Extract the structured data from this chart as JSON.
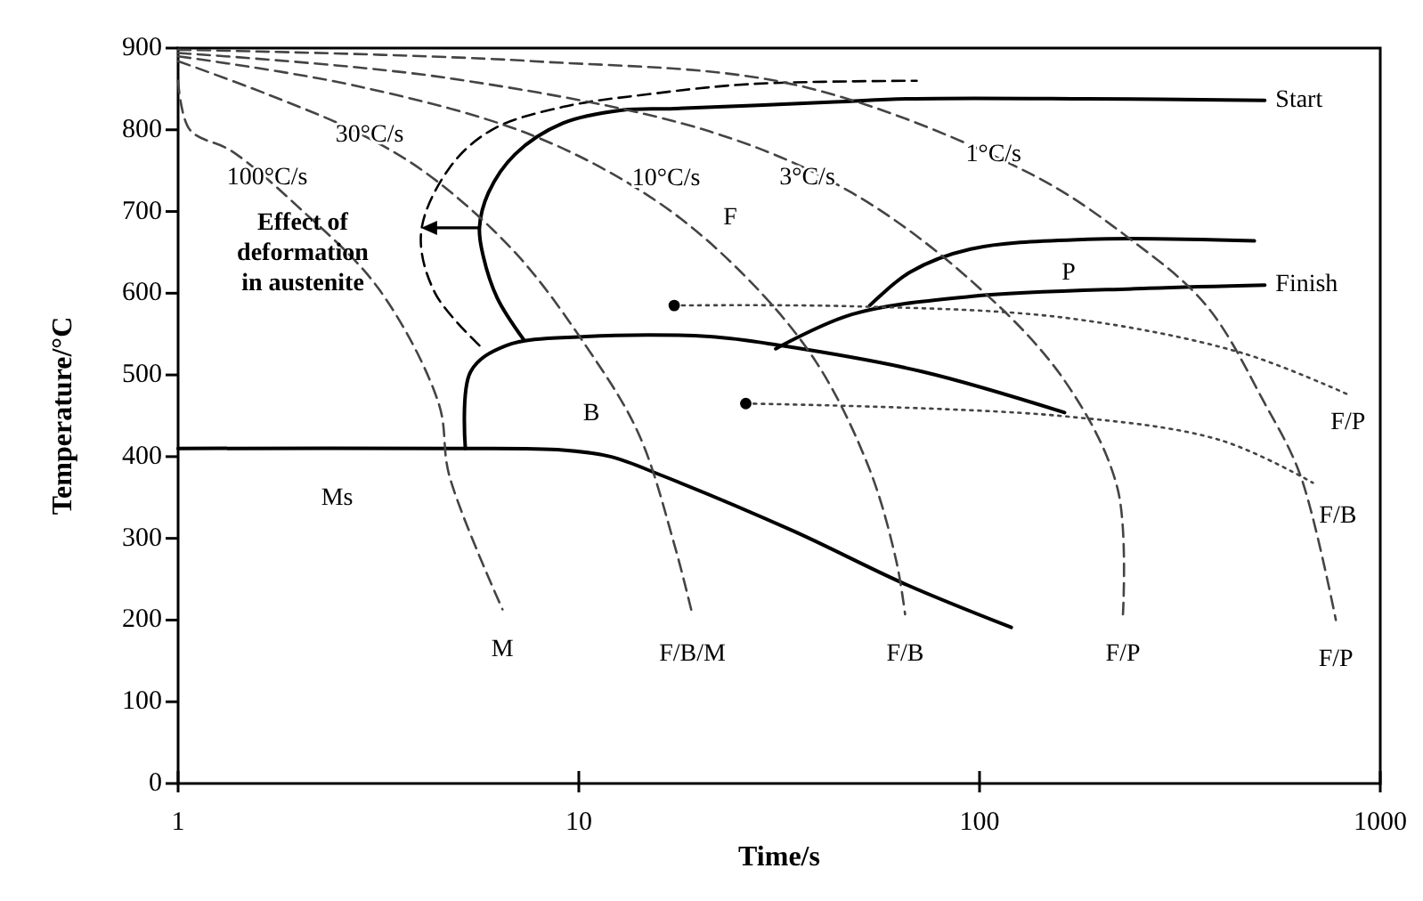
{
  "chart_data": {
    "type": "line",
    "xlabel": "Time/s",
    "ylabel": "Temperature/°C",
    "log": "x",
    "xlim": [
      1,
      1000
    ],
    "xticks": [
      1,
      10,
      100,
      1000
    ],
    "ylim": [
      0,
      900
    ],
    "yticks": [
      0,
      100,
      200,
      300,
      400,
      500,
      600,
      700,
      800,
      900
    ],
    "grid": false,
    "series": [
      {
        "name": "Start",
        "color": "#000000",
        "line_style": "solid",
        "x": [
          7.29,
          6.26,
          5.77,
          5.65,
          5.95,
          6.93,
          9.12,
          12.8,
          17.3,
          43.4,
          67.2,
          186,
          515
        ],
        "values": [
          543,
          594,
          646,
          680,
          723,
          770,
          808,
          824,
          826,
          834,
          838,
          838,
          836
        ]
      },
      {
        "color": "#000000",
        "line_style": "dashed",
        "x": [
          5.65,
          4.38,
          4.04,
          4.75,
          6.07,
          9.12,
          15.2,
          26.9,
          69.7
        ],
        "values": [
          536,
          600,
          674,
          753,
          800,
          828,
          844,
          856,
          860
        ]
      },
      {
        "color": "#000000",
        "line_style": "solid",
        "x": [
          5.21,
          5.37,
          6.59,
          10.4,
          21.2,
          31.9,
          72.1,
          163
        ],
        "values": [
          410,
          504,
          536,
          547,
          547,
          536,
          504,
          454
        ]
      },
      {
        "name": "Ms",
        "color": "#000000",
        "line_style": "solid",
        "x": [
          1,
          5,
          9.12,
          12,
          16.1,
          34.3,
          65.2,
          120
        ],
        "values": [
          410,
          410,
          408,
          400,
          377,
          309,
          244,
          191
        ]
      },
      {
        "color": "#000000",
        "line_style": "solid",
        "x": [
          53.2,
          67.2,
          95,
          186,
          485
        ],
        "values": [
          585,
          626,
          654,
          666,
          664
        ]
      },
      {
        "name": "Finish",
        "color": "#000000",
        "line_style": "solid",
        "x": [
          31,
          48,
          95,
          263,
          515
        ],
        "values": [
          532,
          574,
          596,
          606,
          610
        ]
      },
      {
        "name": "100°C/s",
        "color": "#444444",
        "line_style": "dashed",
        "x": [
          1,
          1.07,
          1.36,
          1.98,
          3.16,
          4.47,
          4.75,
          6.45
        ],
        "values": [
          860,
          800,
          774,
          707,
          606,
          465,
          377,
          213
        ]
      },
      {
        "name": "30°C/s",
        "color": "#444444",
        "line_style": "dashed",
        "x": [
          1,
          1.66,
          2.77,
          4.16,
          6.93,
          10.4,
          14.1,
          17.3,
          19.2
        ],
        "values": [
          884,
          844,
          798,
          747,
          650,
          536,
          428,
          293,
          207
        ]
      },
      {
        "name": "10°C/s",
        "color": "#444444",
        "line_style": "dashed",
        "x": [
          1,
          2.77,
          7.67,
          15.7,
          26.1,
          39.2,
          53.2,
          62,
          65.2
        ],
        "values": [
          890,
          854,
          793,
          712,
          620,
          515,
          384,
          272,
          207
        ]
      },
      {
        "name": "3°C/s",
        "color": "#444444",
        "line_style": "dashed",
        "x": [
          1,
          4.61,
          21.2,
          48,
          98,
          163,
          221,
          228
        ],
        "values": [
          894,
          864,
          798,
          723,
          610,
          493,
          361,
          207
        ]
      },
      {
        "name": "1°C/s",
        "color": "#444444",
        "line_style": "dashed",
        "x": [
          1,
          7.67,
          35.4,
          133,
          238,
          368,
          515,
          632,
          775
        ],
        "values": [
          898,
          884,
          854,
          747,
          666,
          585,
          465,
          377,
          200
        ]
      },
      {
        "name": "F/P",
        "color": "#444444",
        "line_style": "dotted",
        "x": [
          17.3,
          48,
          163,
          451,
          831
        ],
        "values": [
          585,
          584,
          570,
          527,
          476
        ]
      },
      {
        "name": "F/B",
        "color": "#444444",
        "line_style": "dotted",
        "x": [
          26.1,
          158,
          400,
          679
        ],
        "values": [
          465,
          450,
          420,
          368
        ]
      },
      {
        "type": "scatter",
        "color": "#000000",
        "marker": "circle",
        "x": [
          17.3,
          26.1
        ],
        "values": [
          585,
          465
        ]
      }
    ],
    "annotations": [
      "F",
      "Effect of deformation in austenite",
      "B",
      "P",
      {
        "text": "M",
        "x": 6.45,
        "y": 213
      },
      {
        "text": "F/B/M",
        "x": 19.2,
        "y": 207
      },
      {
        "text": "F/B",
        "x": 65.2,
        "y": 207
      },
      {
        "text": "F/P",
        "x": 228,
        "y": 207
      },
      {
        "text": "F/P",
        "x": 775,
        "y": 200
      }
    ]
  }
}
